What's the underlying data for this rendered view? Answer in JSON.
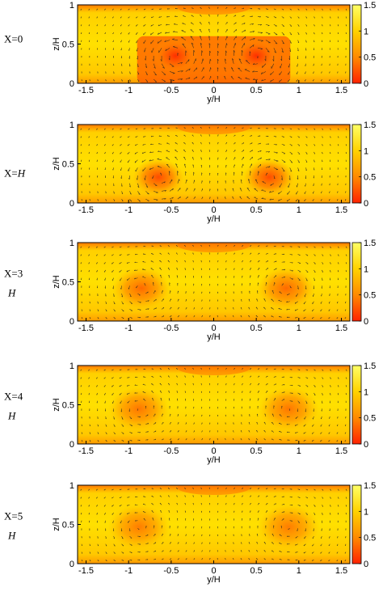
{
  "chart_data": [
    {
      "type": "heatmap",
      "title": "X=0",
      "xlabel": "y/H",
      "ylabel": "z/H",
      "xlim": [
        -1.6,
        1.6
      ],
      "ylim": [
        0,
        1
      ],
      "x_ticks": [
        "-1.5",
        "-1",
        "-0.5",
        "0",
        "0.5",
        "1",
        "1.5"
      ],
      "y_ticks": [
        "0",
        "0.5",
        "1"
      ],
      "colorbar": {
        "range": [
          0,
          1.5
        ],
        "ticks": [
          "1.5",
          "1",
          "0.5",
          "0"
        ],
        "colors": [
          "#ff2200",
          "#ff8a00",
          "#ffd200",
          "#ffff66"
        ]
      },
      "vortices": [
        {
          "y": -0.45,
          "z": 0.35,
          "strength": 0.9,
          "rotation": "ccw"
        },
        {
          "y": 0.5,
          "z": 0.35,
          "strength": 0.9,
          "rotation": "cw"
        }
      ],
      "low_speed_region": {
        "y_min": -0.9,
        "y_max": 0.9,
        "z_min": 0,
        "z_max": 0.6
      }
    },
    {
      "type": "heatmap",
      "title_parts": [
        "X=",
        "H"
      ],
      "xlabel": "y/H",
      "ylabel": "z/H",
      "xlim": [
        -1.6,
        1.6
      ],
      "ylim": [
        0,
        1
      ],
      "x_ticks": [
        "-1.5",
        "-1",
        "-0.5",
        "0",
        "0.5",
        "1",
        "1.5"
      ],
      "y_ticks": [
        "0",
        "0.5",
        "1"
      ],
      "colorbar": {
        "range": [
          0,
          1.5
        ],
        "ticks": [
          "1.5",
          "1",
          "0.5",
          "0"
        ],
        "colors": [
          "#ff2200",
          "#ff8a00",
          "#ffd200",
          "#ffff66"
        ]
      },
      "vortices": [
        {
          "y": -0.65,
          "z": 0.33,
          "strength": 0.7,
          "rotation": "ccw"
        },
        {
          "y": 0.65,
          "z": 0.33,
          "strength": 0.7,
          "rotation": "cw"
        }
      ]
    },
    {
      "type": "heatmap",
      "title_lines": [
        "X=3",
        "H"
      ],
      "xlabel": "y/H",
      "ylabel": "z/H",
      "xlim": [
        -1.6,
        1.6
      ],
      "ylim": [
        0,
        1
      ],
      "x_ticks": [
        "-1.5",
        "-1",
        "-0.5",
        "0",
        "0.5",
        "1",
        "1.5"
      ],
      "y_ticks": [
        "0",
        "0.5",
        "1"
      ],
      "colorbar": {
        "range": [
          0,
          1.5
        ],
        "ticks": [
          "1.5",
          "1",
          "0.5",
          "0"
        ],
        "colors": [
          "#ff2200",
          "#ff8a00",
          "#ffd200",
          "#ffff66"
        ]
      },
      "vortices": [
        {
          "y": -0.85,
          "z": 0.42,
          "strength": 0.45,
          "rotation": "ccw"
        },
        {
          "y": 0.85,
          "z": 0.42,
          "strength": 0.45,
          "rotation": "cw"
        }
      ]
    },
    {
      "type": "heatmap",
      "title_lines": [
        "X=4",
        "H"
      ],
      "xlabel": "y/H",
      "ylabel": "z/H",
      "xlim": [
        -1.6,
        1.6
      ],
      "ylim": [
        0,
        1
      ],
      "x_ticks": [
        "-1.5",
        "-1",
        "-0.5",
        "0",
        "0.5",
        "1",
        "1.5"
      ],
      "y_ticks": [
        "0",
        "0.5",
        "1"
      ],
      "colorbar": {
        "range": [
          0,
          1.5
        ],
        "ticks": [
          "1.5",
          "1",
          "0.5",
          "0"
        ],
        "colors": [
          "#ff2200",
          "#ff8a00",
          "#ffd200",
          "#ffff66"
        ]
      },
      "vortices": [
        {
          "y": -0.88,
          "z": 0.45,
          "strength": 0.35,
          "rotation": "ccw"
        },
        {
          "y": 0.88,
          "z": 0.45,
          "strength": 0.35,
          "rotation": "cw"
        }
      ]
    },
    {
      "type": "heatmap",
      "title_lines": [
        "X=5",
        "H"
      ],
      "xlabel": "y/H",
      "ylabel": "z/H",
      "xlim": [
        -1.6,
        1.6
      ],
      "ylim": [
        0,
        1
      ],
      "x_ticks": [
        "-1.5",
        "-1",
        "-0.5",
        "0",
        "0.5",
        "1",
        "1.5"
      ],
      "y_ticks": [
        "0",
        "0.5",
        "1"
      ],
      "colorbar": {
        "range": [
          0,
          1.5
        ],
        "ticks": [
          "1.5",
          "1",
          "0.5",
          "0"
        ],
        "colors": [
          "#ff2200",
          "#ff8a00",
          "#ffd200",
          "#ffff66"
        ]
      },
      "vortices": [
        {
          "y": -0.88,
          "z": 0.47,
          "strength": 0.3,
          "rotation": "ccw"
        },
        {
          "y": 0.88,
          "z": 0.47,
          "strength": 0.3,
          "rotation": "cw"
        }
      ]
    }
  ]
}
